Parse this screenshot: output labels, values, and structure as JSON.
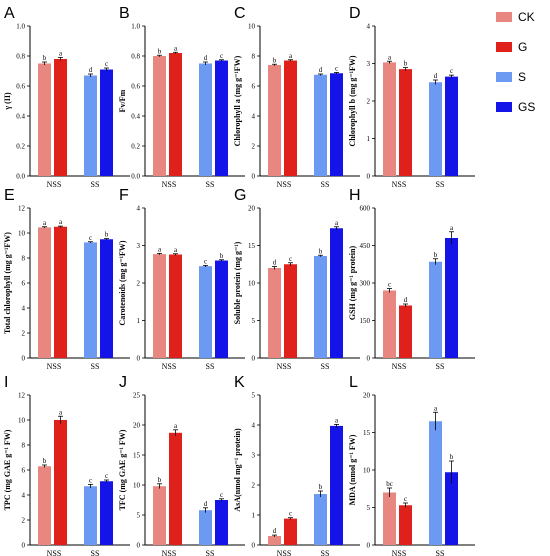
{
  "legend": [
    {
      "label": "CK",
      "color": "#e8877f"
    },
    {
      "label": "G",
      "color": "#e0201b"
    },
    {
      "label": "S",
      "color": "#6c9af2"
    },
    {
      "label": "GS",
      "color": "#1414e8"
    }
  ],
  "chart_data": [
    {
      "panel": "A",
      "type": "bar",
      "ylabel": "γ (II)",
      "ylim": [
        0,
        1.0
      ],
      "yticks": [
        "0.0",
        "0.2",
        "0.4",
        "0.6",
        "0.8",
        "1.0"
      ],
      "categories": [
        "NSS",
        "SS"
      ],
      "series": [
        {
          "name": "CK",
          "values": [
            0.75,
            null
          ],
          "err": [
            0.01,
            null
          ],
          "letters": [
            "b",
            ""
          ]
        },
        {
          "name": "G",
          "values": [
            0.78,
            null
          ],
          "err": [
            0.01,
            null
          ],
          "letters": [
            "a",
            ""
          ]
        },
        {
          "name": "S",
          "values": [
            null,
            0.67
          ],
          "err": [
            null,
            0.01
          ],
          "letters": [
            "",
            "d"
          ]
        },
        {
          "name": "GS",
          "values": [
            null,
            0.71
          ],
          "err": [
            null,
            0.01
          ],
          "letters": [
            "",
            "c"
          ]
        }
      ]
    },
    {
      "panel": "B",
      "type": "bar",
      "ylabel": "Fv/Fm",
      "ylim": [
        0,
        1.0
      ],
      "yticks": [
        "0.0",
        "0.2",
        "0.4",
        "0.6",
        "0.8",
        "1.0"
      ],
      "categories": [
        "NSS",
        "SS"
      ],
      "series": [
        {
          "name": "CK",
          "values": [
            0.8,
            null
          ],
          "err": [
            0.005,
            null
          ],
          "letters": [
            "b",
            ""
          ]
        },
        {
          "name": "G",
          "values": [
            0.82,
            null
          ],
          "err": [
            0.005,
            null
          ],
          "letters": [
            "a",
            ""
          ]
        },
        {
          "name": "S",
          "values": [
            null,
            0.75
          ],
          "err": [
            null,
            0.01
          ],
          "letters": [
            "",
            "d"
          ]
        },
        {
          "name": "GS",
          "values": [
            null,
            0.77
          ],
          "err": [
            null,
            0.005
          ],
          "letters": [
            "",
            "c"
          ]
        }
      ]
    },
    {
      "panel": "C",
      "type": "bar",
      "ylabel": "Chlorophyll a (mg g⁻¹FW)",
      "ylim": [
        0,
        10
      ],
      "yticks": [
        "0",
        "2",
        "4",
        "6",
        "8",
        "10"
      ],
      "categories": [
        "NSS",
        "SS"
      ],
      "series": [
        {
          "name": "CK",
          "values": [
            7.4,
            null
          ],
          "err": [
            0.05,
            null
          ],
          "letters": [
            "b",
            ""
          ]
        },
        {
          "name": "G",
          "values": [
            7.7,
            null
          ],
          "err": [
            0.05,
            null
          ],
          "letters": [
            "a",
            ""
          ]
        },
        {
          "name": "S",
          "values": [
            null,
            6.75
          ],
          "err": [
            null,
            0.05
          ],
          "letters": [
            "",
            "d"
          ]
        },
        {
          "name": "GS",
          "values": [
            null,
            6.85
          ],
          "err": [
            null,
            0.05
          ],
          "letters": [
            "",
            "c"
          ]
        }
      ]
    },
    {
      "panel": "D",
      "type": "bar",
      "ylabel": "Chlorophyll b (mg g⁻¹FW)",
      "ylim": [
        0,
        4
      ],
      "yticks": [
        "0",
        "1",
        "2",
        "3",
        "4"
      ],
      "categories": [
        "NSS",
        "SS"
      ],
      "series": [
        {
          "name": "CK",
          "values": [
            3.03,
            null
          ],
          "err": [
            0.03,
            null
          ],
          "letters": [
            "a",
            ""
          ]
        },
        {
          "name": "G",
          "values": [
            2.85,
            null
          ],
          "err": [
            0.04,
            null
          ],
          "letters": [
            "b",
            ""
          ]
        },
        {
          "name": "S",
          "values": [
            null,
            2.5
          ],
          "err": [
            null,
            0.06
          ],
          "letters": [
            "",
            "d"
          ]
        },
        {
          "name": "GS",
          "values": [
            null,
            2.65
          ],
          "err": [
            null,
            0.04
          ],
          "letters": [
            "",
            "c"
          ]
        }
      ]
    },
    {
      "panel": "E",
      "type": "bar",
      "ylabel": "Total chlorophyll (mg g⁻¹FW)",
      "ylim": [
        0,
        12
      ],
      "yticks": [
        "0",
        "2",
        "4",
        "6",
        "8",
        "10",
        "12"
      ],
      "categories": [
        "NSS",
        "SS"
      ],
      "series": [
        {
          "name": "CK",
          "values": [
            10.45,
            null
          ],
          "err": [
            0.05,
            null
          ],
          "letters": [
            "a",
            ""
          ]
        },
        {
          "name": "G",
          "values": [
            10.5,
            null
          ],
          "err": [
            0.05,
            null
          ],
          "letters": [
            "a",
            ""
          ]
        },
        {
          "name": "S",
          "values": [
            null,
            9.25
          ],
          "err": [
            null,
            0.05
          ],
          "letters": [
            "",
            "c"
          ]
        },
        {
          "name": "GS",
          "values": [
            null,
            9.5
          ],
          "err": [
            null,
            0.05
          ],
          "letters": [
            "",
            "b"
          ]
        }
      ]
    },
    {
      "panel": "F",
      "type": "bar",
      "ylabel": "Carotenoids (mg g⁻¹FW)",
      "ylim": [
        0,
        4
      ],
      "yticks": [
        "0",
        "1",
        "2",
        "3",
        "4"
      ],
      "categories": [
        "NSS",
        "SS"
      ],
      "series": [
        {
          "name": "CK",
          "values": [
            2.77,
            null
          ],
          "err": [
            0.02,
            null
          ],
          "letters": [
            "a",
            ""
          ]
        },
        {
          "name": "G",
          "values": [
            2.76,
            null
          ],
          "err": [
            0.02,
            null
          ],
          "letters": [
            "a",
            ""
          ]
        },
        {
          "name": "S",
          "values": [
            null,
            2.45
          ],
          "err": [
            null,
            0.02
          ],
          "letters": [
            "",
            "c"
          ]
        },
        {
          "name": "GS",
          "values": [
            null,
            2.6
          ],
          "err": [
            null,
            0.02
          ],
          "letters": [
            "",
            "b"
          ]
        }
      ]
    },
    {
      "panel": "G",
      "type": "bar",
      "ylabel": "Soluble protein (mg g⁻¹)",
      "ylim": [
        0,
        20
      ],
      "yticks": [
        "0",
        "5",
        "10",
        "15",
        "20"
      ],
      "categories": [
        "NSS",
        "SS"
      ],
      "series": [
        {
          "name": "CK",
          "values": [
            12.0,
            null
          ],
          "err": [
            0.2,
            null
          ],
          "letters": [
            "d",
            ""
          ]
        },
        {
          "name": "G",
          "values": [
            12.5,
            null
          ],
          "err": [
            0.2,
            null
          ],
          "letters": [
            "c",
            ""
          ]
        },
        {
          "name": "S",
          "values": [
            null,
            13.6
          ],
          "err": [
            null,
            0.1
          ],
          "letters": [
            "",
            "b"
          ]
        },
        {
          "name": "GS",
          "values": [
            null,
            17.3
          ],
          "err": [
            null,
            0.2
          ],
          "letters": [
            "",
            "a"
          ]
        }
      ]
    },
    {
      "panel": "H",
      "type": "bar",
      "ylabel": "GSH (mg g⁻¹ protein)",
      "ylim": [
        0,
        600
      ],
      "yticks": [
        "0",
        "150",
        "300",
        "450",
        "600"
      ],
      "categories": [
        "NSS",
        "SS"
      ],
      "series": [
        {
          "name": "CK",
          "values": [
            270,
            null
          ],
          "err": [
            8,
            null
          ],
          "letters": [
            "c",
            ""
          ]
        },
        {
          "name": "G",
          "values": [
            210,
            null
          ],
          "err": [
            6,
            null
          ],
          "letters": [
            "d",
            ""
          ]
        },
        {
          "name": "S",
          "values": [
            null,
            385
          ],
          "err": [
            null,
            12
          ],
          "letters": [
            "",
            "b"
          ]
        },
        {
          "name": "GS",
          "values": [
            null,
            480
          ],
          "err": [
            null,
            25
          ],
          "letters": [
            "",
            "a"
          ]
        }
      ]
    },
    {
      "panel": "I",
      "type": "bar",
      "ylabel": "TPC (mg GAE g⁻¹ FW)",
      "ylim": [
        0,
        12
      ],
      "yticks": [
        "0",
        "2",
        "4",
        "6",
        "8",
        "10",
        "12"
      ],
      "categories": [
        "NSS",
        "SS"
      ],
      "series": [
        {
          "name": "CK",
          "values": [
            6.3,
            null
          ],
          "err": [
            0.1,
            null
          ],
          "letters": [
            "b",
            ""
          ]
        },
        {
          "name": "G",
          "values": [
            10.0,
            null
          ],
          "err": [
            0.3,
            null
          ],
          "letters": [
            "a",
            ""
          ]
        },
        {
          "name": "S",
          "values": [
            null,
            4.7
          ],
          "err": [
            null,
            0.15
          ],
          "letters": [
            "",
            "c"
          ]
        },
        {
          "name": "GS",
          "values": [
            null,
            5.1
          ],
          "err": [
            null,
            0.1
          ],
          "letters": [
            "",
            "c"
          ]
        }
      ]
    },
    {
      "panel": "J",
      "type": "bar",
      "ylabel": "TFC (mg GAE g⁻¹ FW)",
      "ylim": [
        0,
        25
      ],
      "yticks": [
        "0",
        "5",
        "10",
        "15",
        "20",
        "25"
      ],
      "categories": [
        "NSS",
        "SS"
      ],
      "series": [
        {
          "name": "CK",
          "values": [
            9.8,
            null
          ],
          "err": [
            0.4,
            null
          ],
          "letters": [
            "b",
            ""
          ]
        },
        {
          "name": "G",
          "values": [
            18.7,
            null
          ],
          "err": [
            0.5,
            null
          ],
          "letters": [
            "a",
            ""
          ]
        },
        {
          "name": "S",
          "values": [
            null,
            5.8
          ],
          "err": [
            null,
            0.4
          ],
          "letters": [
            "",
            "d"
          ]
        },
        {
          "name": "GS",
          "values": [
            null,
            7.5
          ],
          "err": [
            null,
            0.2
          ],
          "letters": [
            "",
            "c"
          ]
        }
      ]
    },
    {
      "panel": "K",
      "type": "bar",
      "ylabel": "AsA(nmol mg⁻¹ protein)",
      "ylim": [
        0,
        5
      ],
      "yticks": [
        "0",
        "1",
        "2",
        "3",
        "4",
        "5"
      ],
      "categories": [
        "NSS",
        "SS"
      ],
      "series": [
        {
          "name": "CK",
          "values": [
            0.3,
            null
          ],
          "err": [
            0.03,
            null
          ],
          "letters": [
            "d",
            ""
          ]
        },
        {
          "name": "G",
          "values": [
            0.88,
            null
          ],
          "err": [
            0.03,
            null
          ],
          "letters": [
            "c",
            ""
          ]
        },
        {
          "name": "S",
          "values": [
            null,
            1.7
          ],
          "err": [
            null,
            0.1
          ],
          "letters": [
            "",
            "b"
          ]
        },
        {
          "name": "GS",
          "values": [
            null,
            3.97
          ],
          "err": [
            null,
            0.05
          ],
          "letters": [
            "",
            "a"
          ]
        }
      ]
    },
    {
      "panel": "L",
      "type": "bar",
      "ylabel": "MDA (nmol g⁻¹ FW)",
      "ylim": [
        0,
        20
      ],
      "yticks": [
        "0",
        "5",
        "10",
        "15",
        "20"
      ],
      "categories": [
        "NSS",
        "SS"
      ],
      "series": [
        {
          "name": "CK",
          "values": [
            7.0,
            null
          ],
          "err": [
            0.6,
            null
          ],
          "letters": [
            "bc",
            ""
          ]
        },
        {
          "name": "G",
          "values": [
            5.3,
            null
          ],
          "err": [
            0.3,
            null
          ],
          "letters": [
            "c",
            ""
          ]
        },
        {
          "name": "S",
          "values": [
            null,
            16.5
          ],
          "err": [
            null,
            1.2
          ],
          "letters": [
            "",
            "a"
          ]
        },
        {
          "name": "GS",
          "values": [
            null,
            9.7
          ],
          "err": [
            null,
            1.5
          ],
          "letters": [
            "",
            "b"
          ]
        }
      ]
    }
  ]
}
